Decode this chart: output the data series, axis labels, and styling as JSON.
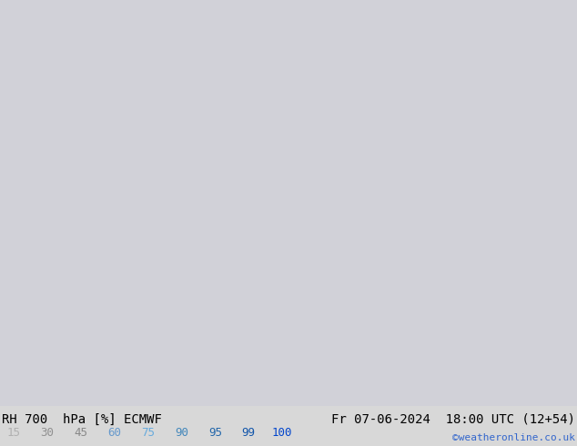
{
  "title_left": "RH 700  hPa [%] ECMWF",
  "title_right": "Fr 07-06-2024  18:00 UTC (12+54)",
  "credit": "©weatheronline.co.uk",
  "colorbar_values": [
    15,
    30,
    45,
    60,
    75,
    90,
    95,
    99,
    100
  ],
  "colorbar_colors": [
    "#e8e8e8",
    "#d0d0d0",
    "#b8b8b8",
    "#a0a0c8",
    "#8888d8",
    "#6666c8",
    "#4444b8",
    "#2222a8",
    "#0000ff"
  ],
  "colorbar_label_colors": [
    "#b0b0b0",
    "#909090",
    "#888888",
    "#6699cc",
    "#66aadd",
    "#4488bb",
    "#2266aa",
    "#1155aa",
    "#0044cc"
  ],
  "bg_color": "#d8d8d8",
  "map_bg": "#c8c8c8",
  "bottom_bg": "#d8d8d8",
  "font_size_title": 10,
  "font_size_credit": 8,
  "font_size_colorbar": 9
}
